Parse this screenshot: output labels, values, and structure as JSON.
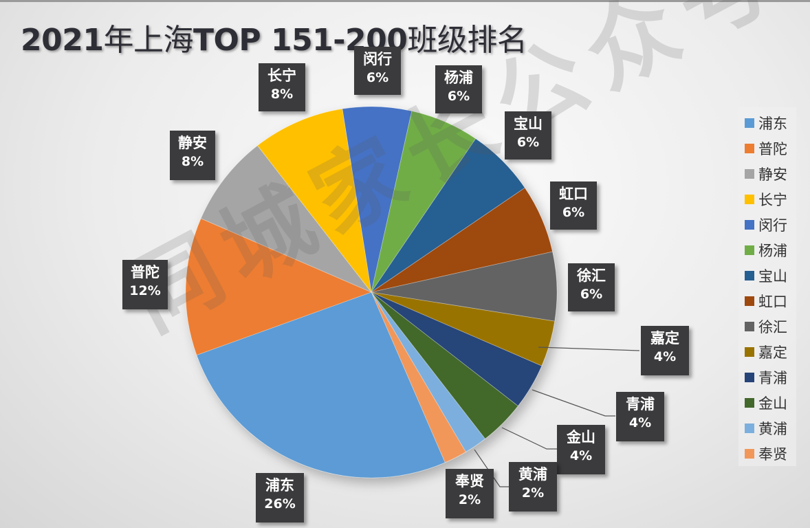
{
  "chart_data": {
    "type": "pie",
    "title": "2021年上海TOP 151-200班级排名",
    "start_angle_deg": -9,
    "direction": "clockwise",
    "slices": [
      {
        "name": "闵行",
        "value": 6,
        "label": "6%",
        "color": "#4472C4"
      },
      {
        "name": "杨浦",
        "value": 6,
        "label": "6%",
        "color": "#70AD47"
      },
      {
        "name": "宝山",
        "value": 6,
        "label": "6%",
        "color": "#255E91"
      },
      {
        "name": "虹口",
        "value": 6,
        "label": "6%",
        "color": "#9E480E"
      },
      {
        "name": "徐汇",
        "value": 6,
        "label": "6%",
        "color": "#636363"
      },
      {
        "name": "嘉定",
        "value": 4,
        "label": "4%",
        "color": "#997300"
      },
      {
        "name": "青浦",
        "value": 4,
        "label": "4%",
        "color": "#264478"
      },
      {
        "name": "金山",
        "value": 4,
        "label": "4%",
        "color": "#43682B"
      },
      {
        "name": "黄浦",
        "value": 2,
        "label": "2%",
        "color": "#7CAFDD"
      },
      {
        "name": "奉贤",
        "value": 2,
        "label": "2%",
        "color": "#F1975A"
      },
      {
        "name": "浦东",
        "value": 26,
        "label": "26%",
        "color": "#5B9BD5"
      },
      {
        "name": "普陀",
        "value": 12,
        "label": "12%",
        "color": "#ED7D31"
      },
      {
        "name": "静安",
        "value": 8,
        "label": "8%",
        "color": "#A5A5A5"
      },
      {
        "name": "长宁",
        "value": 8,
        "label": "8%",
        "color": "#FFC000"
      }
    ],
    "legend_position": "right",
    "legend": [
      "浦东",
      "普陀",
      "静安",
      "长宁",
      "闵行",
      "杨浦",
      "宝山",
      "虹口",
      "徐汇",
      "嘉定",
      "青浦",
      "金山",
      "黄浦",
      "奉贤"
    ]
  },
  "title": {
    "year_part": "2021",
    "cn1": "年上海",
    "latin": "TOP 151-200",
    "cn2": "班级排名"
  },
  "watermark": "同城家长公众号",
  "legend": [
    {
      "name": "浦东",
      "color": "#5B9BD5"
    },
    {
      "name": "普陀",
      "color": "#ED7D31"
    },
    {
      "name": "静安",
      "color": "#A5A5A5"
    },
    {
      "name": "长宁",
      "color": "#FFC000"
    },
    {
      "name": "闵行",
      "color": "#4472C4"
    },
    {
      "name": "杨浦",
      "color": "#70AD47"
    },
    {
      "name": "宝山",
      "color": "#255E91"
    },
    {
      "name": "虹口",
      "color": "#9E480E"
    },
    {
      "name": "徐汇",
      "color": "#636363"
    },
    {
      "name": "嘉定",
      "color": "#997300"
    },
    {
      "name": "青浦",
      "color": "#264478"
    },
    {
      "name": "金山",
      "color": "#43682B"
    },
    {
      "name": "黄浦",
      "color": "#7CAFDD"
    },
    {
      "name": "奉贤",
      "color": "#F1975A"
    }
  ],
  "labels": [
    {
      "name": "长宁",
      "pct": "8%"
    },
    {
      "name": "闵行",
      "pct": "6%"
    },
    {
      "name": "杨浦",
      "pct": "6%"
    },
    {
      "name": "宝山",
      "pct": "6%"
    },
    {
      "name": "虹口",
      "pct": "6%"
    },
    {
      "name": "徐汇",
      "pct": "6%"
    },
    {
      "name": "嘉定",
      "pct": "4%"
    },
    {
      "name": "青浦",
      "pct": "4%"
    },
    {
      "name": "金山",
      "pct": "4%"
    },
    {
      "name": "黄浦",
      "pct": "2%"
    },
    {
      "name": "奉贤",
      "pct": "2%"
    },
    {
      "name": "浦东",
      "pct": "26%"
    },
    {
      "name": "普陀",
      "pct": "12%"
    },
    {
      "name": "静安",
      "pct": "8%"
    }
  ]
}
